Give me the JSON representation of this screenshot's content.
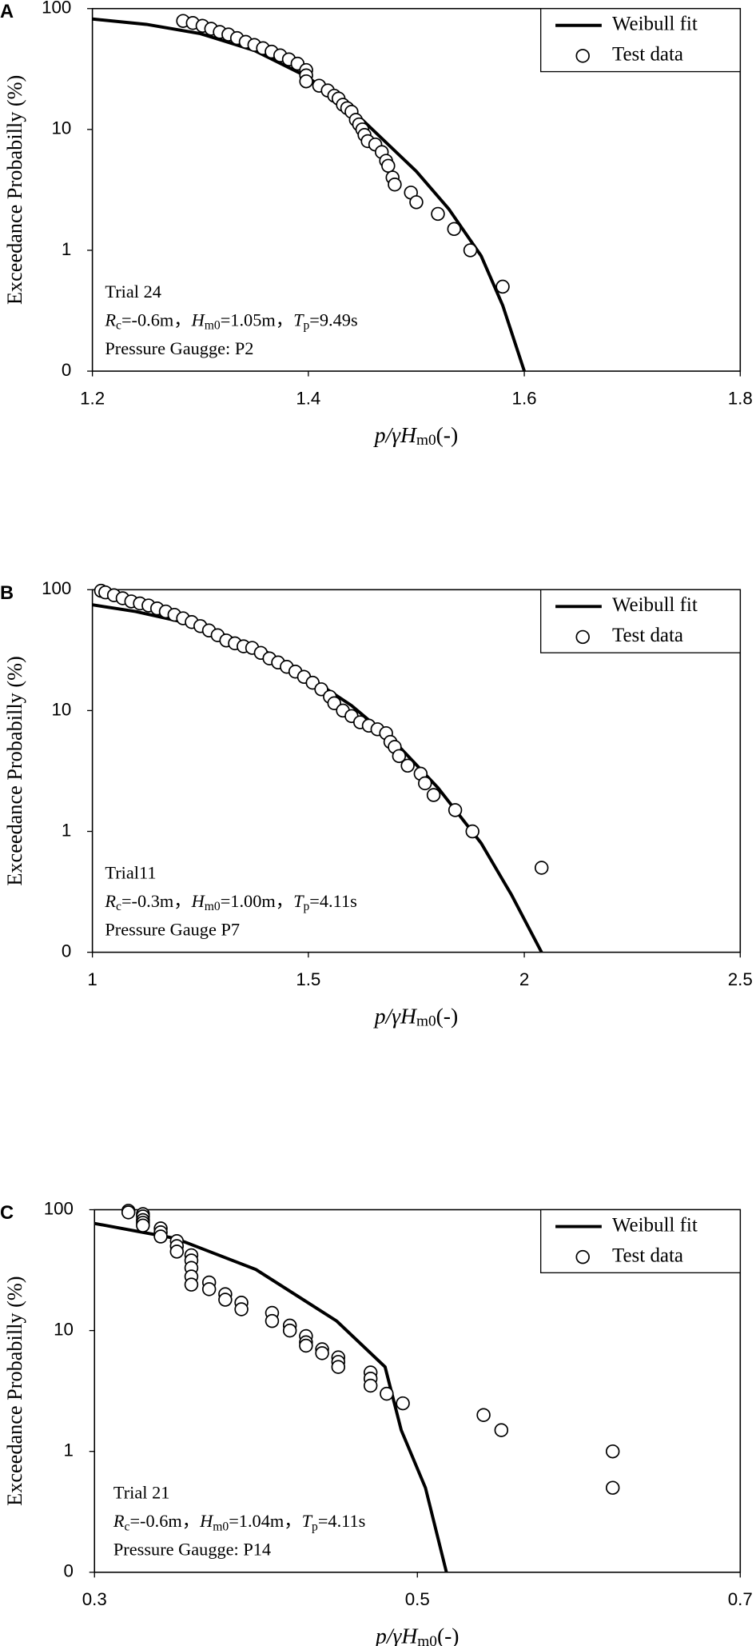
{
  "chart_data": [
    {
      "type": "scatter",
      "panel": "A",
      "ylabel": "Exceedance Probabilly (%)",
      "xlabel": [
        "p/γH",
        "m0",
        "(-)"
      ],
      "annotations": [
        "Trial 24",
        [
          "R",
          "c",
          "=-0.6m，",
          "H",
          "m0",
          "=1.05m，",
          "T",
          "p",
          "=9.49s"
        ],
        "Pressure Gaugge: P2"
      ],
      "xlim": [
        1.2,
        1.8
      ],
      "xticks": [
        1.2,
        1.4,
        1.6,
        1.8
      ],
      "ylim": [
        0.1,
        100
      ],
      "yticks": [
        {
          "value": 0.1,
          "label": "0"
        },
        1,
        10,
        100
      ],
      "ylog": true,
      "legend": "upper right",
      "series": [
        {
          "name": "Weibull fit",
          "type": "line",
          "color": "#000000",
          "x": [
            1.2,
            1.25,
            1.3,
            1.35,
            1.4,
            1.45,
            1.5,
            1.53,
            1.56,
            1.58,
            1.6
          ],
          "values": [
            82,
            74,
            62,
            45,
            27,
            12,
            4.5,
            2.2,
            0.9,
            0.35,
            0.1
          ]
        },
        {
          "name": "Test data",
          "type": "scatter",
          "color": "#000000",
          "x": [
            1.284,
            1.293,
            1.302,
            1.31,
            1.318,
            1.326,
            1.334,
            1.342,
            1.35,
            1.358,
            1.366,
            1.374,
            1.382,
            1.39,
            1.398,
            1.398,
            1.398,
            1.41,
            1.418,
            1.424,
            1.428,
            1.432,
            1.436,
            1.44,
            1.444,
            1.447,
            1.45,
            1.452,
            1.455,
            1.462,
            1.468,
            1.472,
            1.474,
            1.478,
            1.48,
            1.495,
            1.5,
            1.52,
            1.535,
            1.55,
            1.58
          ],
          "values": [
            79,
            76,
            72,
            68,
            64,
            61,
            57,
            53,
            50,
            47,
            44,
            41,
            38,
            35,
            31,
            28,
            25,
            23,
            21,
            19,
            18,
            16,
            15,
            14,
            12,
            11,
            10,
            9,
            8,
            7.5,
            6.5,
            5.5,
            5,
            4,
            3.5,
            3,
            2.5,
            2,
            1.5,
            1,
            0.5
          ]
        }
      ]
    },
    {
      "type": "scatter",
      "panel": "B",
      "ylabel": "Exceedance Probabilly (%)",
      "xlabel": [
        "p/γH",
        "m0",
        "(-)"
      ],
      "annotations": [
        "Trial11",
        [
          "R",
          "c",
          "=-0.3m，",
          "H",
          "m0",
          "=1.00m，",
          "T",
          "p",
          "=4.11s"
        ],
        "Pressure Gauge P7"
      ],
      "xlim": [
        1,
        2.5
      ],
      "xticks": [
        1,
        1.5,
        2,
        2.5
      ],
      "ylim": [
        0.1,
        100
      ],
      "yticks": [
        {
          "value": 0.1,
          "label": "0"
        },
        1,
        10,
        100
      ],
      "ylog": true,
      "legend": "upper right",
      "series": [
        {
          "name": "Weibull fit",
          "type": "line",
          "color": "#000000",
          "x": [
            1,
            1.1,
            1.2,
            1.3,
            1.4,
            1.5,
            1.6,
            1.7,
            1.8,
            1.9,
            1.97,
            2.04
          ],
          "values": [
            75,
            66,
            55,
            43,
            31,
            19,
            11,
            5.5,
            2.3,
            0.8,
            0.3,
            0.1
          ]
        },
        {
          "name": "Test data",
          "type": "scatter",
          "color": "#000000",
          "x": [
            1.02,
            1.03,
            1.05,
            1.07,
            1.09,
            1.11,
            1.13,
            1.15,
            1.17,
            1.19,
            1.21,
            1.23,
            1.25,
            1.27,
            1.29,
            1.31,
            1.33,
            1.35,
            1.37,
            1.39,
            1.41,
            1.43,
            1.45,
            1.47,
            1.49,
            1.51,
            1.53,
            1.55,
            1.56,
            1.58,
            1.6,
            1.62,
            1.64,
            1.66,
            1.68,
            1.69,
            1.7,
            1.71,
            1.73,
            1.76,
            1.77,
            1.79,
            1.84,
            1.88,
            2.04
          ],
          "values": [
            98,
            95,
            90,
            85,
            80,
            77,
            74,
            70,
            66,
            62,
            58,
            54,
            50,
            46,
            42,
            38,
            36,
            34,
            33,
            30,
            27,
            25,
            23,
            21,
            19,
            17,
            15,
            13,
            11.5,
            10,
            9,
            8,
            7.5,
            7,
            6.5,
            5.5,
            5,
            4.2,
            3.5,
            3,
            2.5,
            2,
            1.5,
            1,
            0.5
          ]
        }
      ]
    },
    {
      "type": "scatter",
      "panel": "C",
      "ylabel": "Exceedance Probabilly (%)",
      "xlabel": [
        "p/γH",
        "m0",
        "(-)"
      ],
      "annotations": [
        "Trial 21",
        [
          "R",
          "c",
          "=-0.6m，",
          "H",
          "m0",
          "=1.04m，",
          "T",
          "p",
          "=4.11s"
        ],
        "Pressure Gaugge: P14"
      ],
      "xlim": [
        0.3,
        0.7
      ],
      "xticks": [
        0.3,
        0.5,
        0.7
      ],
      "ylim": [
        0.1,
        100
      ],
      "yticks": [
        {
          "value": 0.1,
          "label": "0"
        },
        1,
        10,
        100
      ],
      "ylog": true,
      "legend": "upper right",
      "series": [
        {
          "name": "Weibull fit",
          "type": "line",
          "color": "#000000",
          "x": [
            0.3,
            0.35,
            0.4,
            0.45,
            0.48,
            0.49,
            0.505,
            0.518
          ],
          "values": [
            77,
            58,
            32,
            12,
            5,
            1.5,
            0.5,
            0.1
          ]
        },
        {
          "name": "Test data",
          "type": "scatter",
          "color": "#000000",
          "x": [
            0.321,
            0.321,
            0.33,
            0.33,
            0.33,
            0.33,
            0.33,
            0.341,
            0.341,
            0.341,
            0.351,
            0.351,
            0.351,
            0.36,
            0.36,
            0.36,
            0.36,
            0.36,
            0.371,
            0.371,
            0.381,
            0.381,
            0.391,
            0.391,
            0.41,
            0.41,
            0.421,
            0.421,
            0.431,
            0.431,
            0.431,
            0.441,
            0.441,
            0.451,
            0.451,
            0.451,
            0.471,
            0.471,
            0.471,
            0.481,
            0.491,
            0.541,
            0.552,
            0.621,
            0.621
          ],
          "values": [
            98,
            95,
            92,
            88,
            82,
            78,
            74,
            70,
            65,
            60,
            55,
            50,
            45,
            42,
            38,
            33,
            28,
            24,
            25,
            22,
            20,
            18,
            17,
            15,
            14,
            12,
            11,
            10,
            9,
            8,
            7.5,
            7,
            6.5,
            6,
            5.5,
            5,
            4.5,
            4,
            3.5,
            3,
            2.5,
            2,
            1.5,
            1,
            0.5
          ]
        }
      ]
    }
  ]
}
